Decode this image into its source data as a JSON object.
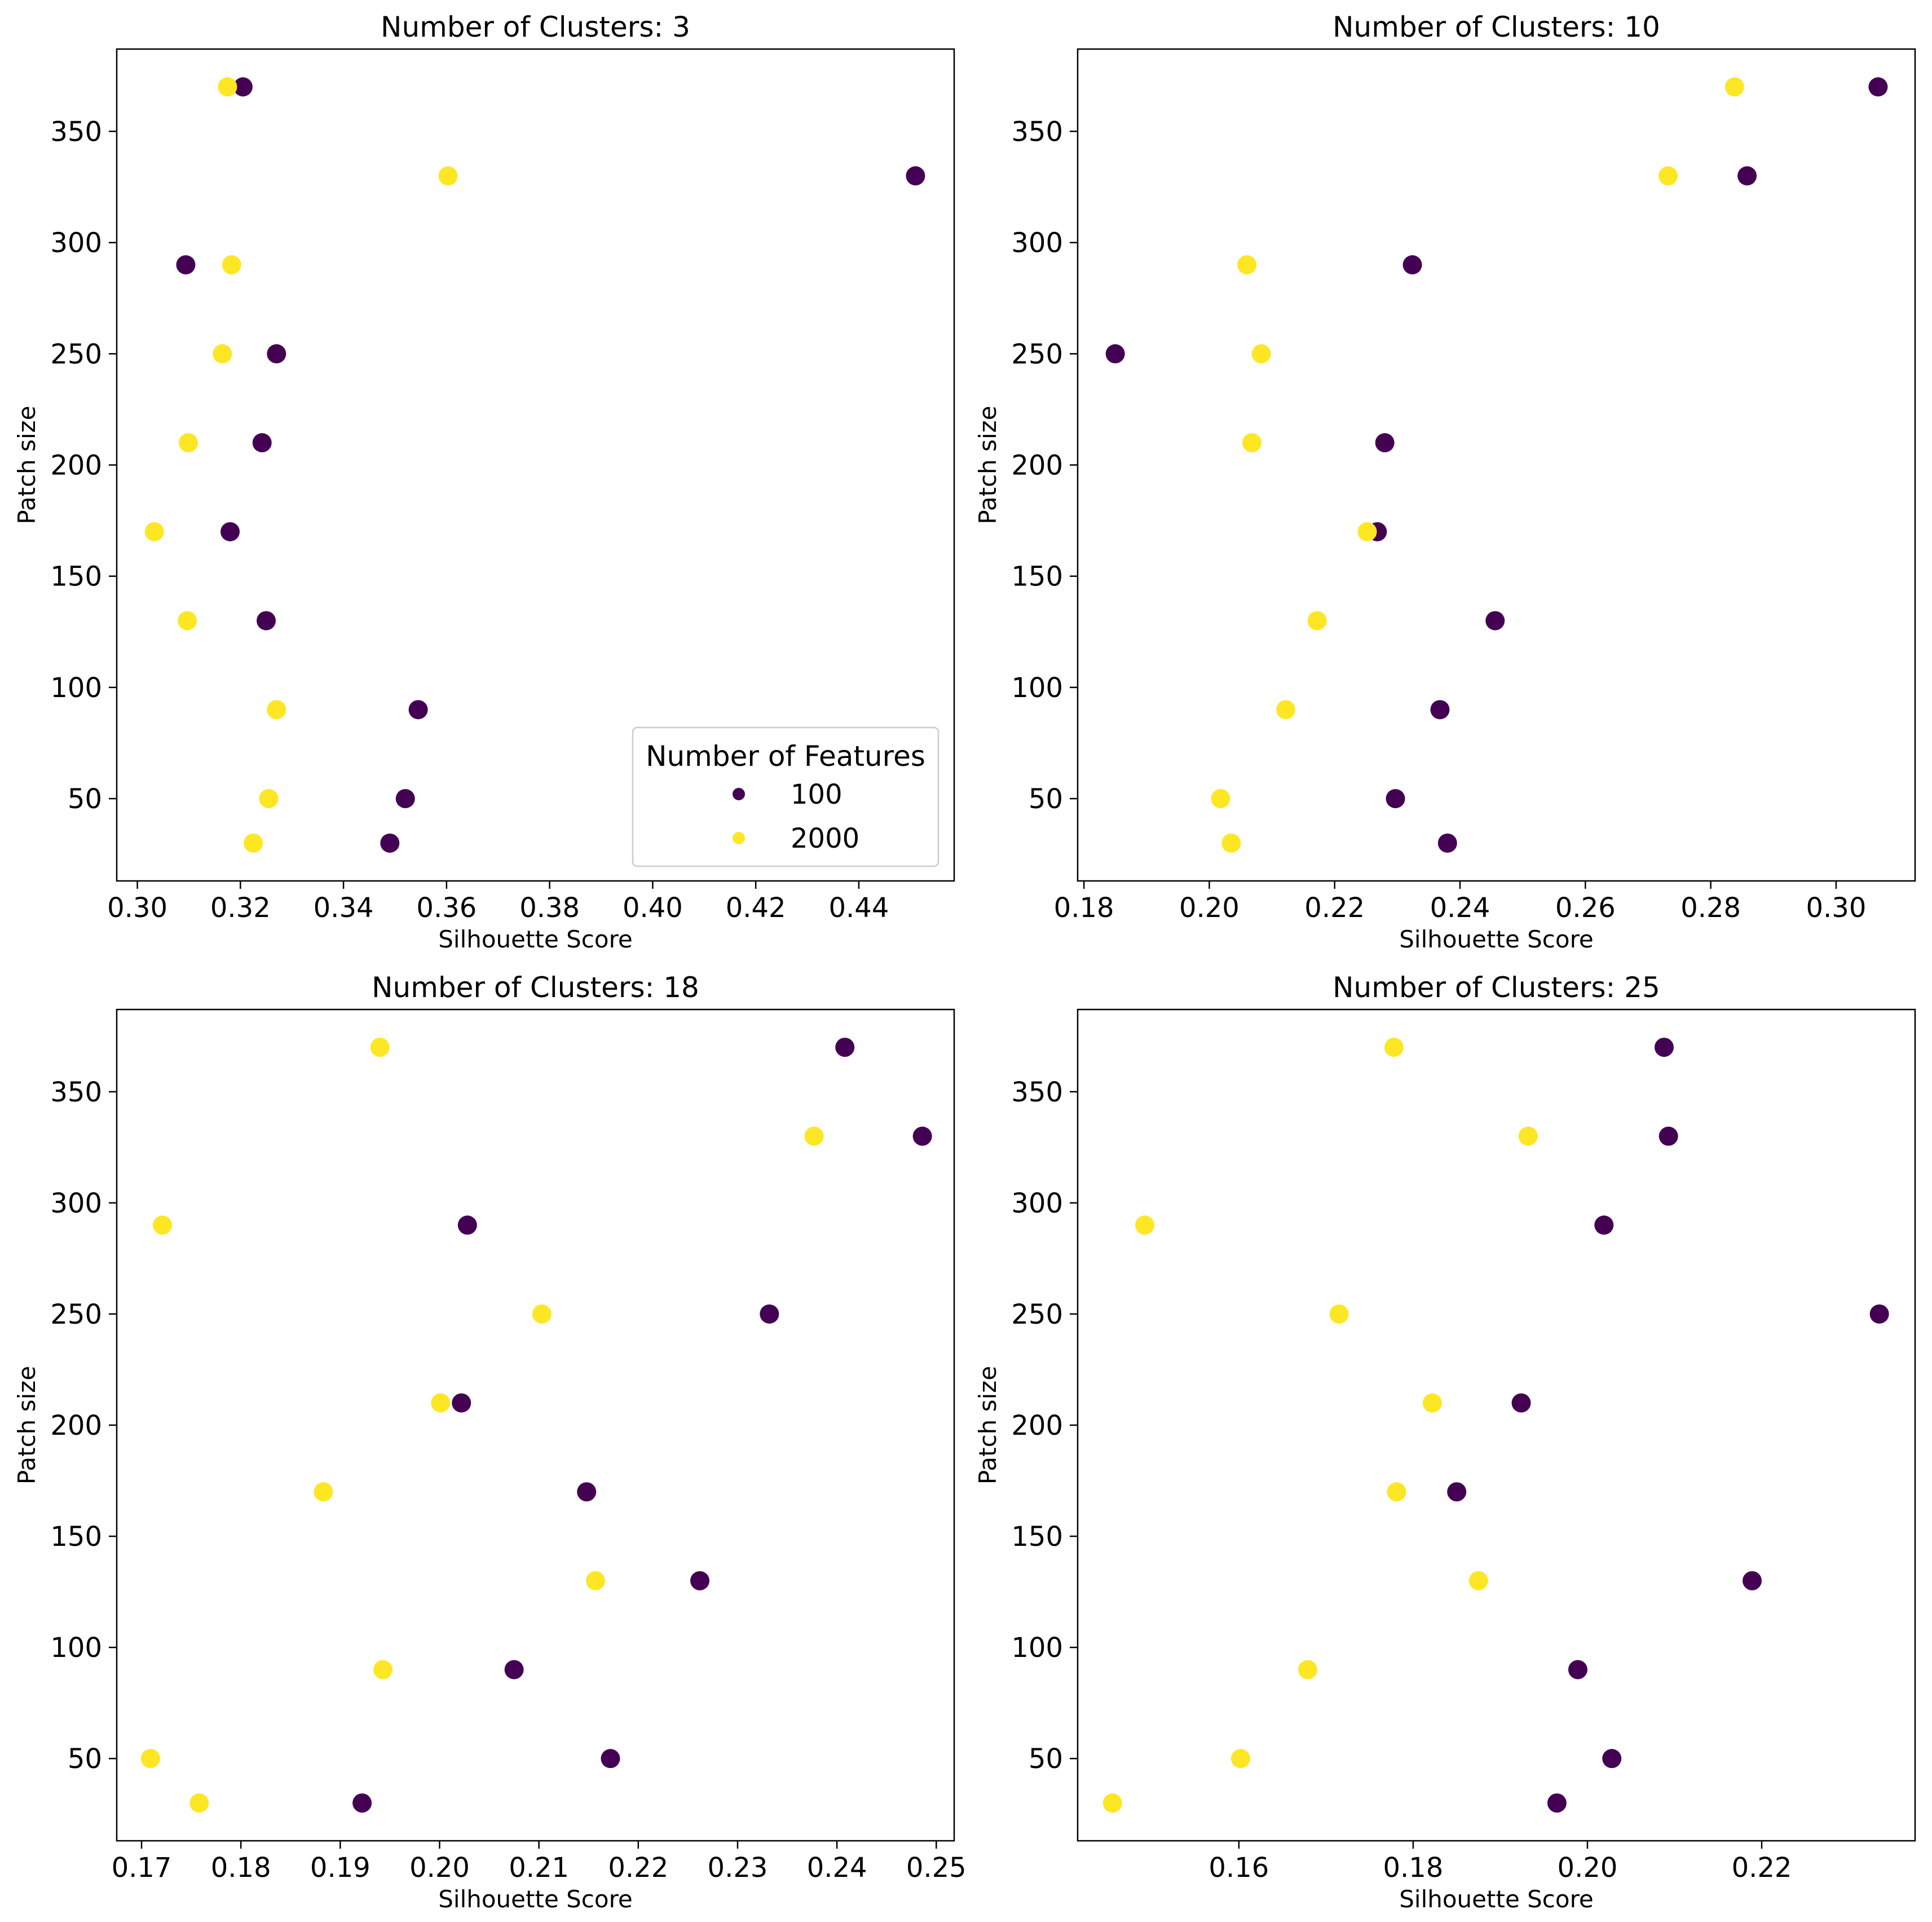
{
  "chart_data": [
    {
      "type": "scatter",
      "title": "Number of Clusters: 3",
      "xlabel": "Silhouette Score",
      "ylabel": "Patch size",
      "xlim": [
        0.296,
        0.4585
      ],
      "ylim": [
        13,
        387
      ],
      "xticks": [
        "0.30",
        "0.32",
        "0.34",
        "0.36",
        "0.38",
        "0.40",
        "0.42",
        "0.44"
      ],
      "yticks": [
        "50",
        "100",
        "150",
        "200",
        "250",
        "300",
        "350"
      ],
      "series": [
        {
          "name": "100",
          "color": "#440154",
          "points": [
            [
              0.349,
              30
            ],
            [
              0.352,
              50
            ],
            [
              0.3545,
              90
            ],
            [
              0.325,
              130
            ],
            [
              0.318,
              170
            ],
            [
              0.3242,
              210
            ],
            [
              0.327,
              250
            ],
            [
              0.3094,
              290
            ],
            [
              0.451,
              330
            ],
            [
              0.3205,
              370
            ]
          ]
        },
        {
          "name": "2000",
          "color": "#fde725",
          "points": [
            [
              0.3225,
              30
            ],
            [
              0.3255,
              50
            ],
            [
              0.327,
              90
            ],
            [
              0.3097,
              130
            ],
            [
              0.3033,
              170
            ],
            [
              0.3099,
              210
            ],
            [
              0.3165,
              250
            ],
            [
              0.3183,
              290
            ],
            [
              0.3603,
              330
            ],
            [
              0.3175,
              370
            ]
          ]
        }
      ],
      "legend": {
        "title": "Number of Features",
        "position": "lower-right"
      }
    },
    {
      "type": "scatter",
      "title": "Number of Clusters: 10",
      "xlabel": "Silhouette Score",
      "ylabel": "Patch size",
      "xlim": [
        0.179,
        0.3126
      ],
      "ylim": [
        13,
        387
      ],
      "xticks": [
        "0.18",
        "0.20",
        "0.22",
        "0.24",
        "0.26",
        "0.28",
        "0.30"
      ],
      "yticks": [
        "50",
        "100",
        "150",
        "200",
        "250",
        "300",
        "350"
      ],
      "series": [
        {
          "name": "100",
          "color": "#440154",
          "points": [
            [
              0.238,
              30
            ],
            [
              0.2297,
              50
            ],
            [
              0.2368,
              90
            ],
            [
              0.2456,
              130
            ],
            [
              0.2268,
              170
            ],
            [
              0.228,
              210
            ],
            [
              0.185,
              250
            ],
            [
              0.2324,
              290
            ],
            [
              0.2858,
              330
            ],
            [
              0.3067,
              370
            ]
          ]
        },
        {
          "name": "2000",
          "color": "#fde725",
          "points": [
            [
              0.2035,
              30
            ],
            [
              0.2018,
              50
            ],
            [
              0.2122,
              90
            ],
            [
              0.2172,
              130
            ],
            [
              0.2252,
              170
            ],
            [
              0.2068,
              210
            ],
            [
              0.2083,
              250
            ],
            [
              0.206,
              290
            ],
            [
              0.2732,
              330
            ],
            [
              0.2838,
              370
            ]
          ]
        }
      ]
    },
    {
      "type": "scatter",
      "title": "Number of Clusters: 18",
      "xlabel": "Silhouette Score",
      "ylabel": "Patch size",
      "xlim": [
        0.1675,
        0.2518
      ],
      "ylim": [
        13,
        387
      ],
      "xticks": [
        "0.17",
        "0.18",
        "0.19",
        "0.20",
        "0.21",
        "0.22",
        "0.23",
        "0.24",
        "0.25"
      ],
      "yticks": [
        "50",
        "100",
        "150",
        "200",
        "250",
        "300",
        "350"
      ],
      "series": [
        {
          "name": "100",
          "color": "#440154",
          "points": [
            [
              0.1922,
              30
            ],
            [
              0.2172,
              50
            ],
            [
              0.2075,
              90
            ],
            [
              0.2262,
              130
            ],
            [
              0.2148,
              170
            ],
            [
              0.2022,
              210
            ],
            [
              0.2332,
              250
            ],
            [
              0.2028,
              290
            ],
            [
              0.2486,
              330
            ],
            [
              0.2408,
              370
            ]
          ]
        },
        {
          "name": "2000",
          "color": "#fde725",
          "points": [
            [
              0.1758,
              30
            ],
            [
              0.1709,
              50
            ],
            [
              0.1943,
              90
            ],
            [
              0.2157,
              130
            ],
            [
              0.1883,
              170
            ],
            [
              0.2001,
              210
            ],
            [
              0.2103,
              250
            ],
            [
              0.1721,
              290
            ],
            [
              0.2377,
              330
            ],
            [
              0.194,
              370
            ]
          ]
        }
      ]
    },
    {
      "type": "scatter",
      "title": "Number of Clusters: 25",
      "xlabel": "Silhouette Score",
      "ylabel": "Patch size",
      "xlim": [
        0.1415,
        0.2376
      ],
      "ylim": [
        13,
        387
      ],
      "xticks": [
        "0.16",
        "0.18",
        "0.20",
        "0.22"
      ],
      "yticks": [
        "50",
        "100",
        "150",
        "200",
        "250",
        "300",
        "350"
      ],
      "series": [
        {
          "name": "100",
          "color": "#440154",
          "points": [
            [
              0.1965,
              30
            ],
            [
              0.2028,
              50
            ],
            [
              0.1989,
              90
            ],
            [
              0.2189,
              130
            ],
            [
              0.185,
              170
            ],
            [
              0.1924,
              210
            ],
            [
              0.2335,
              250
            ],
            [
              0.2019,
              290
            ],
            [
              0.2093,
              330
            ],
            [
              0.2088,
              370
            ]
          ]
        },
        {
          "name": "2000",
          "color": "#fde725",
          "points": [
            [
              0.1455,
              30
            ],
            [
              0.1602,
              50
            ],
            [
              0.1679,
              90
            ],
            [
              0.1875,
              130
            ],
            [
              0.1781,
              170
            ],
            [
              0.1822,
              210
            ],
            [
              0.1715,
              250
            ],
            [
              0.1492,
              290
            ],
            [
              0.1932,
              330
            ],
            [
              0.1778,
              370
            ]
          ]
        }
      ]
    }
  ]
}
